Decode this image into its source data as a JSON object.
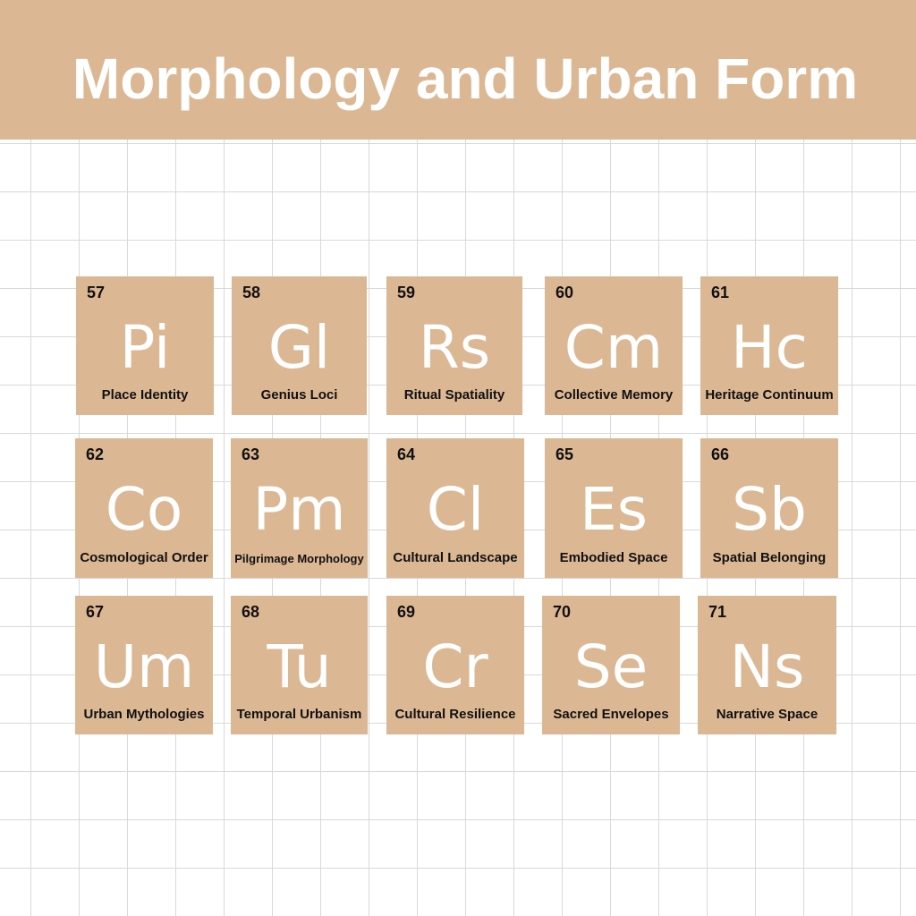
{
  "title": "Morphology and Urban Form",
  "colors": {
    "tile": "#dcb794",
    "banner": "#dcb794",
    "symbol": "#ffffff",
    "text": "#111111"
  },
  "elements": [
    {
      "number": "57",
      "symbol": "Pi",
      "name": "Place Identity"
    },
    {
      "number": "58",
      "symbol": "Gl",
      "name": "Genius Loci"
    },
    {
      "number": "59",
      "symbol": "Rs",
      "name": "Ritual Spatiality"
    },
    {
      "number": "60",
      "symbol": "Cm",
      "name": "Collective Memory"
    },
    {
      "number": "61",
      "symbol": "Hc",
      "name": "Heritage Continuum"
    },
    {
      "number": "62",
      "symbol": "Co",
      "name": "Cosmological Order"
    },
    {
      "number": "63",
      "symbol": "Pm",
      "name": "Pilgrimage Morphology"
    },
    {
      "number": "64",
      "symbol": "Cl",
      "name": "Cultural Landscape"
    },
    {
      "number": "65",
      "symbol": "Es",
      "name": "Embodied Space"
    },
    {
      "number": "66",
      "symbol": "Sb",
      "name": "Spatial Belonging"
    },
    {
      "number": "67",
      "symbol": "Um",
      "name": "Urban Mythologies"
    },
    {
      "number": "68",
      "symbol": "Tu",
      "name": "Temporal Urbanism"
    },
    {
      "number": "69",
      "symbol": "Cr",
      "name": "Cultural Resilience"
    },
    {
      "number": "70",
      "symbol": "Se",
      "name": "Sacred Envelopes"
    },
    {
      "number": "71",
      "symbol": "Ns",
      "name": "Narrative Space"
    }
  ]
}
